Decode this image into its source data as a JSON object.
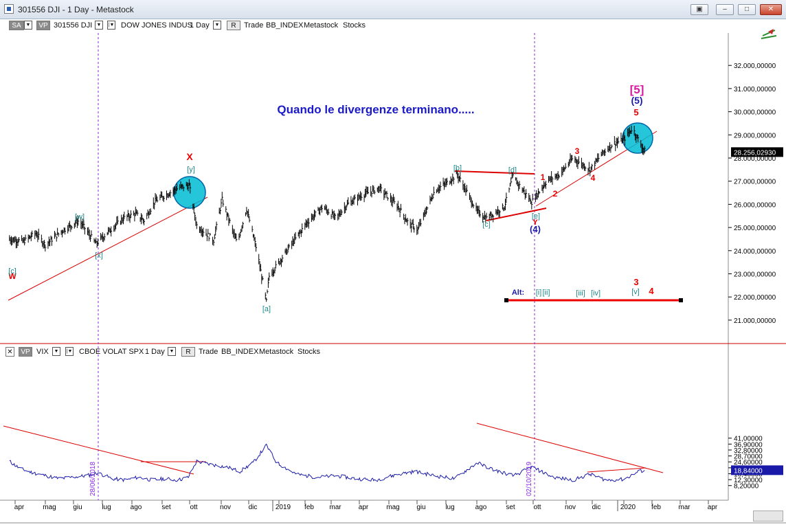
{
  "window": {
    "title": "301556 DJI - 1 Day - Metastock",
    "buttons": [
      "restore",
      "minimize",
      "maximize",
      "close"
    ]
  },
  "top_toolbar": {
    "sa": "SA",
    "vp": "VP",
    "symbol": "301556 DJI",
    "name": "DOW JONES INDUS",
    "period": "1 Day",
    "r": "R",
    "trade": "Trade",
    "exchange": "BB_INDEX",
    "source": "Metastock",
    "kind": "Stocks"
  },
  "bottom_toolbar": {
    "vp": "VP",
    "symbol": "VIX",
    "name": "CBOE VOLAT SPX",
    "period": "1 Day",
    "r": "R",
    "trade": "Trade",
    "exchange": "BB_INDEX",
    "source": "Metastock",
    "kind": "Stocks"
  },
  "chart_data": [
    {
      "type": "ohlc",
      "title": "Quando le divergenze terminano.....",
      "series": [
        {
          "name": "DOW JONES INDUS"
        }
      ],
      "ylim": [
        20500,
        33000
      ],
      "y_ticks": [
        {
          "value": 32000,
          "label": "32.000,00000"
        },
        {
          "value": 31000,
          "label": "31.000,00000"
        },
        {
          "value": 30000,
          "label": "30.000,00000"
        },
        {
          "value": 29000,
          "label": "29.000,00000"
        },
        {
          "value": 28000,
          "label": "28.000,00000"
        },
        {
          "value": 27000,
          "label": "27.000,00000"
        },
        {
          "value": 26000,
          "label": "26.000,00000"
        },
        {
          "value": 25000,
          "label": "25.000,00000"
        },
        {
          "value": 24000,
          "label": "24.000,00000"
        },
        {
          "value": 23000,
          "label": "23.000,00000"
        },
        {
          "value": 22000,
          "label": "22.000,00000"
        },
        {
          "value": 21000,
          "label": "21.000,00000"
        }
      ],
      "last_price_label": "28.256,02930",
      "last_price": 28256,
      "x": [
        "2018-03-26",
        "2018-04-10",
        "2018-04-23",
        "2018-05-03",
        "2018-05-21",
        "2018-06-08",
        "2018-06-26",
        "2018-07-10",
        "2018-07-25",
        "2018-08-07",
        "2018-08-16",
        "2018-08-28",
        "2018-09-21",
        "2018-10-03",
        "2018-10-11",
        "2018-10-29",
        "2018-11-07",
        "2018-11-23",
        "2018-12-03",
        "2018-12-14",
        "2018-12-24",
        "2018-12-27",
        "2019-01-15",
        "2019-02-05",
        "2019-02-22",
        "2019-03-08",
        "2019-03-20",
        "2019-04-05",
        "2019-04-23",
        "2019-05-13",
        "2019-05-24",
        "2019-06-03",
        "2019-06-21",
        "2019-07-03",
        "2019-07-15",
        "2019-08-05",
        "2019-08-15",
        "2019-09-03",
        "2019-09-12",
        "2019-10-02",
        "2019-10-18",
        "2019-11-01",
        "2019-11-15",
        "2019-12-03",
        "2019-12-16",
        "2019-12-27",
        "2020-01-08",
        "2020-01-17",
        "2020-01-27",
        "2020-01-31"
      ],
      "y": [
        24500,
        24400,
        24750,
        24250,
        24850,
        25300,
        24300,
        24850,
        25400,
        25600,
        25300,
        26150,
        26700,
        26830,
        25100,
        24450,
        26200,
        24300,
        25800,
        24000,
        21800,
        22900,
        24000,
        25200,
        25900,
        25400,
        26000,
        26400,
        26700,
        25900,
        25200,
        24900,
        26600,
        26900,
        27300,
        25700,
        25400,
        25900,
        27200,
        26100,
        27000,
        27300,
        28000,
        27500,
        28200,
        28600,
        28800,
        29300,
        28500,
        28256
      ],
      "wave_labels": [
        "W",
        "[c]",
        "[w]",
        "[x]",
        "X",
        "[y]",
        "[a]",
        "[b]",
        "[c]",
        "[d]",
        "[e]",
        "Y",
        "(4)",
        "1",
        "2",
        "3",
        "4",
        "5",
        "(5)",
        "[5]",
        "Alt:",
        "[i]",
        "[ii]",
        "[iii]",
        "[iv]",
        "[v]",
        "3",
        "4"
      ],
      "x_tick_labels": [
        "apr",
        "mag",
        "giu",
        "lug",
        "ago",
        "set",
        "ott",
        "nov",
        "dic",
        "2019",
        "feb",
        "mar",
        "apr",
        "mag",
        "giu",
        "lug",
        "ago",
        "set",
        "ott",
        "nov",
        "dic",
        "2020",
        "feb",
        "mar",
        "apr"
      ]
    },
    {
      "type": "line",
      "series": [
        {
          "name": "VIX"
        }
      ],
      "ylim": [
        6,
        44
      ],
      "y_ticks": [
        {
          "value": 41.0,
          "label": "41,00000"
        },
        {
          "value": 36.9,
          "label": "36,90000"
        },
        {
          "value": 32.8,
          "label": "32,80000"
        },
        {
          "value": 28.7,
          "label": "28,70000"
        },
        {
          "value": 24.6,
          "label": "24,60000"
        },
        {
          "value": 20.5,
          "label": "20,50000"
        },
        {
          "value": 16.4,
          "label": "16,40000"
        },
        {
          "value": 12.3,
          "label": "12,30000"
        },
        {
          "value": 8.2,
          "label": "8,20000"
        }
      ],
      "last_value_label": "18,84000",
      "last_value": 18.84,
      "x": [
        "2018-03-26",
        "2018-04-06",
        "2018-04-20",
        "2018-05-04",
        "2018-05-18",
        "2018-06-01",
        "2018-06-15",
        "2018-06-28",
        "2018-07-13",
        "2018-07-27",
        "2018-08-10",
        "2018-08-24",
        "2018-09-07",
        "2018-09-21",
        "2018-10-02",
        "2018-10-11",
        "2018-10-24",
        "2018-11-12",
        "2018-11-26",
        "2018-12-10",
        "2018-12-24",
        "2019-01-04",
        "2019-01-25",
        "2019-02-15",
        "2019-03-08",
        "2019-03-29",
        "2019-04-19",
        "2019-05-13",
        "2019-05-31",
        "2019-06-21",
        "2019-07-12",
        "2019-08-05",
        "2019-08-23",
        "2019-09-13",
        "2019-10-02",
        "2019-10-25",
        "2019-11-15",
        "2019-12-03",
        "2019-12-20",
        "2020-01-08",
        "2020-01-24",
        "2020-01-31"
      ],
      "y": [
        25,
        20,
        17,
        15,
        13,
        14,
        15,
        17,
        13,
        12,
        14,
        12,
        13,
        12,
        14,
        25,
        23,
        21,
        18,
        24,
        36,
        24,
        16,
        14,
        15,
        13,
        12,
        16,
        18,
        15,
        13,
        24,
        19,
        15,
        21,
        14,
        12,
        16,
        12,
        12.5,
        18,
        18.84
      ],
      "date_annotations": [
        "28/06/2018",
        "02/10/2019"
      ],
      "x_tick_labels": [
        "apr",
        "mag",
        "giu",
        "lug",
        "ago",
        "set",
        "ott",
        "nov",
        "dic",
        "2019",
        "feb",
        "mar",
        "apr",
        "mag",
        "giu",
        "lug",
        "ago",
        "set",
        "ott",
        "nov",
        "dic",
        "2020",
        "feb",
        "mar",
        "apr"
      ]
    }
  ]
}
